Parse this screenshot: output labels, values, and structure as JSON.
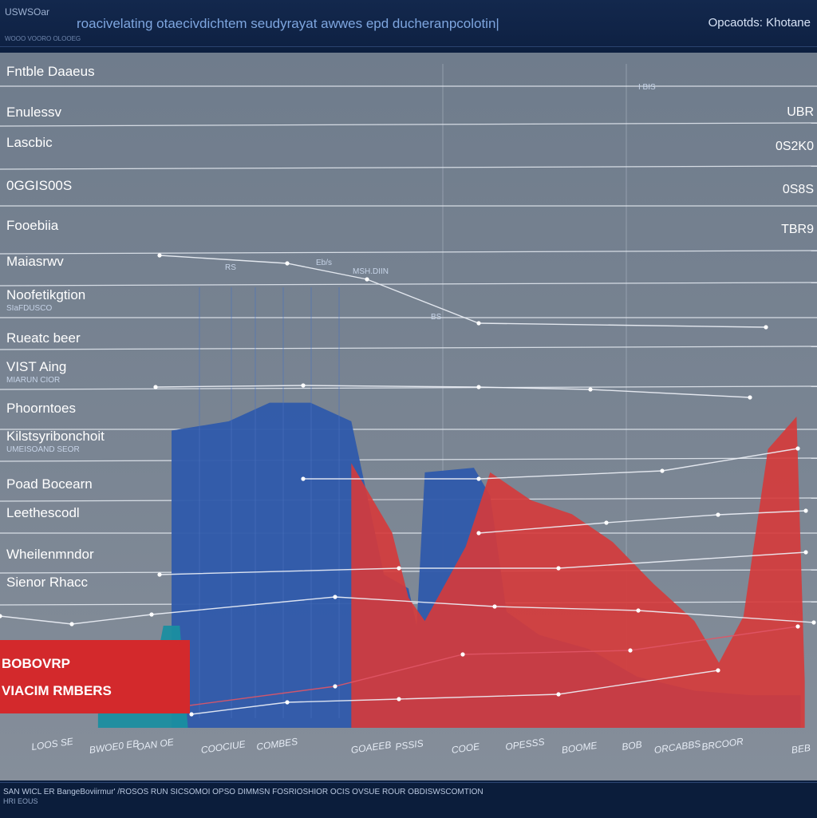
{
  "header": {
    "brand": "USWSOar",
    "brand_sub": "WOOO VOORO OLOOEG",
    "title": "roacivelating otaecivdichtem seudyrayat awwes epd ducheranpcolotin|",
    "corner": "Opcaotds: Khotane"
  },
  "row_labels": [
    {
      "label": "Fntble Daaeus",
      "sub": ""
    },
    {
      "label": "Enulessv",
      "sub": ""
    },
    {
      "label": "Lascbic",
      "sub": ""
    },
    {
      "label": "0GGIS00S",
      "sub": ""
    },
    {
      "label": "Fooebiia",
      "sub": ""
    },
    {
      "label": "Maiasrwv",
      "sub": ""
    },
    {
      "label": "Noofetikgtion",
      "sub": "SIaFDUSCO"
    },
    {
      "label": "Rueatc beer",
      "sub": ""
    },
    {
      "label": "VIST Aing",
      "sub": "MIARUN CIOR"
    },
    {
      "label": "Phoorntoes",
      "sub": ""
    },
    {
      "label": "Kilstsyribonchoit",
      "sub": "UMEISOAND SEOR"
    },
    {
      "label": "Poad Bocearn",
      "sub": ""
    },
    {
      "label": "Leethescodl",
      "sub": ""
    },
    {
      "label": "Wheilenmndor",
      "sub": ""
    },
    {
      "label": "Sienor Rhacc",
      "sub": ""
    }
  ],
  "right_values": [
    "UBR",
    "0S2K0",
    "0S8S",
    "TBR9"
  ],
  "right_top_tick": "I BIS",
  "peak_labels": [
    "RS",
    "Eb/s",
    "MSH.DIIN",
    "BS"
  ],
  "banner": {
    "line1": "BOBOVRP",
    "line2": "VIACIM RMBERS"
  },
  "footer": {
    "line1": "SAN WICL ER BangeBoviirmur' /ROSOS RUN SICSOMOI OPSO DIMMSN FOSRIOSHIOR OCIS OVSUE ROUR OBDISWSCOMTION",
    "line2": "HRI EOUS"
  },
  "colors": {
    "blue_series": "#2f5aab",
    "red_series": "#d63a3a",
    "teal_series": "#1a8ea0",
    "panel": "#76818f"
  },
  "chart_data": {
    "type": "area",
    "title": "roacivelating otaecivdichtem seudyrayat awwes epd ducheranpcolotin|",
    "x_tick_labels": [
      "LOOS SE",
      "BWOE0 EB",
      "OAN OE",
      "COOCIUE",
      "COMBES",
      "GOAEEB",
      "PSSIS",
      "COOE",
      "OPESSS",
      "BOOME",
      "BOB",
      "ORCABBS",
      "BRCOOR",
      "BEB"
    ],
    "x": [
      0.2,
      0.25,
      0.3,
      0.4,
      0.5,
      0.55,
      0.6,
      0.7,
      0.8,
      0.9,
      0.95,
      1.0
    ],
    "ylim": [
      0,
      100
    ],
    "series": [
      {
        "color": "#2f5aab",
        "points": [
          [
            0.21,
            64
          ],
          [
            0.28,
            66
          ],
          [
            0.33,
            70
          ],
          [
            0.38,
            70
          ],
          [
            0.43,
            66
          ],
          [
            0.47,
            33
          ],
          [
            0.5,
            30
          ],
          [
            0.51,
            22
          ],
          [
            0.52,
            55
          ],
          [
            0.58,
            56
          ],
          [
            0.6,
            50
          ],
          [
            0.62,
            25
          ],
          [
            0.66,
            20
          ],
          [
            0.72,
            17
          ],
          [
            0.78,
            11
          ],
          [
            0.85,
            8
          ],
          [
            0.92,
            7
          ],
          [
            0.98,
            7
          ]
        ]
      },
      {
        "color": "#d63a3a",
        "points": [
          [
            0.43,
            57
          ],
          [
            0.48,
            42
          ],
          [
            0.5,
            28
          ],
          [
            0.52,
            23
          ],
          [
            0.57,
            39
          ],
          [
            0.6,
            55
          ],
          [
            0.65,
            49
          ],
          [
            0.7,
            46
          ],
          [
            0.75,
            40
          ],
          [
            0.8,
            31
          ],
          [
            0.85,
            23
          ],
          [
            0.88,
            14
          ],
          [
            0.91,
            24
          ],
          [
            0.94,
            60
          ],
          [
            0.975,
            67
          ],
          [
            0.985,
            10
          ]
        ]
      },
      {
        "color": "#1a8ea0",
        "points": [
          [
            0.12,
            13
          ],
          [
            0.19,
            13
          ],
          [
            0.2,
            22
          ],
          [
            0.22,
            22
          ],
          [
            0.23,
            0
          ]
        ]
      }
    ]
  }
}
